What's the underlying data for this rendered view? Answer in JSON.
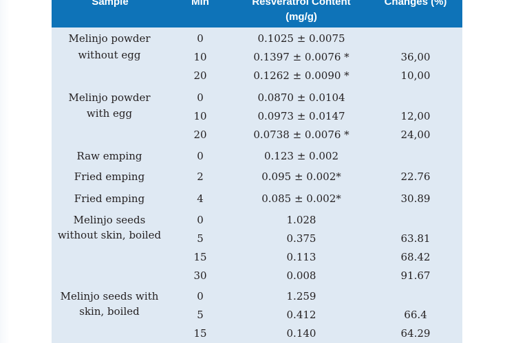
{
  "headers": {
    "sample": "Sample",
    "min": "Min",
    "resveratrol_line1": "Resveratrol Content",
    "resveratrol_line2": "(mg/g)",
    "changes": "Changes (%)"
  },
  "groups": [
    {
      "sample_lines": [
        "Melinjo powder",
        "without egg"
      ]
    },
    {
      "sample_lines": [
        "Melinjo powder",
        "with egg"
      ]
    },
    {
      "sample_lines": [
        "Raw emping"
      ]
    },
    {
      "sample_lines": [
        "Fried emping"
      ]
    },
    {
      "sample_lines": [
        "Fried emping"
      ]
    },
    {
      "sample_lines": [
        "Melinjo seeds",
        "without skin, boiled"
      ]
    },
    {
      "sample_lines": [
        "Melinjo seeds with",
        "skin, boiled"
      ]
    }
  ],
  "rows": [
    {
      "min": "0",
      "resveratrol": "0.1025 ± 0.0075",
      "change": ""
    },
    {
      "min": "10",
      "resveratrol": "0.1397 ± 0.0076 *",
      "change": "36,00"
    },
    {
      "min": "20",
      "resveratrol": "0.1262 ± 0.0090 *",
      "change": "10,00"
    },
    {
      "min": "0",
      "resveratrol": "0.0870 ± 0.0104",
      "change": ""
    },
    {
      "min": "10",
      "resveratrol": "0.0973 ± 0.0147",
      "change": "12,00"
    },
    {
      "min": "20",
      "resveratrol": "0.0738 ± 0.0076 *",
      "change": "24,00"
    },
    {
      "min": "0",
      "resveratrol": "0.123 ± 0.002",
      "change": ""
    },
    {
      "min": "2",
      "resveratrol": "0.095 ± 0.002*",
      "change": "22.76"
    },
    {
      "min": "4",
      "resveratrol": "0.085 ± 0.002*",
      "change": "30.89"
    },
    {
      "min": "0",
      "resveratrol": "1.028",
      "change": ""
    },
    {
      "min": "5",
      "resveratrol": "0.375",
      "change": "63.81"
    },
    {
      "min": "15",
      "resveratrol": "0.113",
      "change": "68.42"
    },
    {
      "min": "30",
      "resveratrol": "0.008",
      "change": "91.67"
    },
    {
      "min": "0",
      "resveratrol": "1.259",
      "change": ""
    },
    {
      "min": "5",
      "resveratrol": "0.412",
      "change": "66.4"
    },
    {
      "min": "15",
      "resveratrol": "0.140",
      "change": "64.29"
    }
  ],
  "colors": {
    "header_bg": "#0e73b8",
    "table_bg": "#dfe9f3",
    "text": "#231f20",
    "header_text": "#ffffff"
  }
}
